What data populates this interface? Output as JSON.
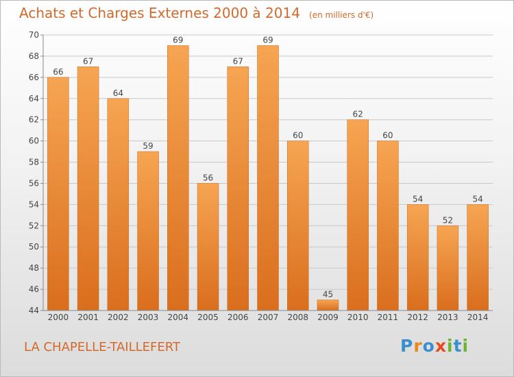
{
  "header": {
    "title": "Achats et Charges Externes 2000 à 2014",
    "unit": "(en milliers d'€)"
  },
  "footer": {
    "commune": "LA CHAPELLE-TAILLEFERT",
    "logo_letters": [
      "P",
      "r",
      "o",
      "x",
      "i",
      "t",
      "i"
    ],
    "logo_colors": [
      "#3a8fd0",
      "#e8891c",
      "#3a8fd0",
      "#e84a1c",
      "#6cb42c",
      "#3a8fd0",
      "#6cb42c"
    ]
  },
  "colors": {
    "accent": "#d2692a",
    "bar_light": "#f6a552",
    "bar_dark": "#d96e1e",
    "grid": "#c8c8c8"
  },
  "chart_data": {
    "type": "bar",
    "categories": [
      "2000",
      "2001",
      "2002",
      "2003",
      "2004",
      "2005",
      "2006",
      "2007",
      "2008",
      "2009",
      "2010",
      "2011",
      "2012",
      "2013",
      "2014"
    ],
    "values": [
      66,
      67,
      64,
      59,
      69,
      56,
      67,
      69,
      60,
      45,
      62,
      60,
      54,
      52,
      54
    ],
    "ylim": [
      44,
      70
    ],
    "yticks": [
      44,
      46,
      48,
      50,
      52,
      54,
      56,
      58,
      60,
      62,
      64,
      66,
      68,
      70
    ],
    "title": "Achats et Charges Externes 2000 à 2014",
    "ylabel": "",
    "xlabel": "",
    "grid": true
  }
}
